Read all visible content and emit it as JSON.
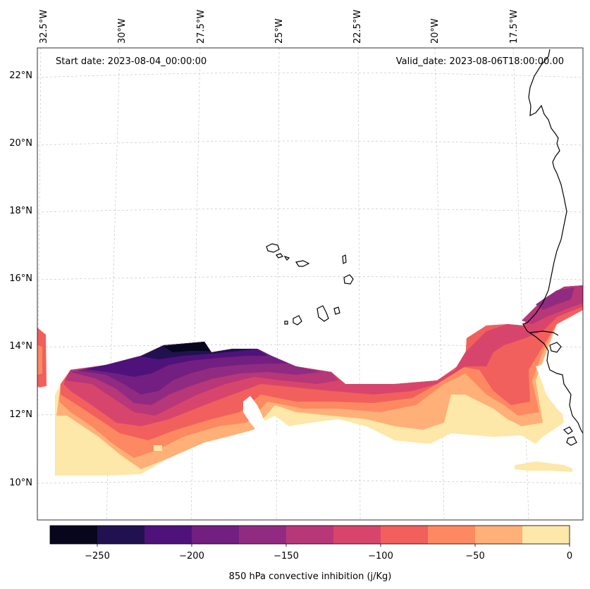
{
  "map": {
    "start_label": "Start date: 2023-08-04_00:00:00",
    "valid_label": "Valid_date: 2023-08-06T18:00:00.00",
    "lon_labels": [
      "32.5°W",
      "30°W",
      "27.5°W",
      "25°W",
      "22.5°W",
      "20°W",
      "17.5°W"
    ],
    "lat_labels": [
      "22°N",
      "20°N",
      "18°N",
      "16°N",
      "14°N",
      "12°N",
      "10°N"
    ],
    "variable": "850 hPa convective inhibition"
  },
  "colorbar": {
    "label": "850 hPa convective inhibition (j/Kg)",
    "tick_labels": [
      "−250",
      "−200",
      "−150",
      "−100",
      "−50",
      "0"
    ],
    "levels": [
      -275,
      -250,
      -225,
      -200,
      -175,
      -150,
      -125,
      -100,
      -75,
      -50,
      -25,
      0
    ],
    "colors": [
      "#07061c",
      "#221150",
      "#4f127b",
      "#721f81",
      "#912b81",
      "#b73779",
      "#d8456c",
      "#f1605d",
      "#fc8961",
      "#feb078",
      "#fde7a9"
    ]
  }
}
